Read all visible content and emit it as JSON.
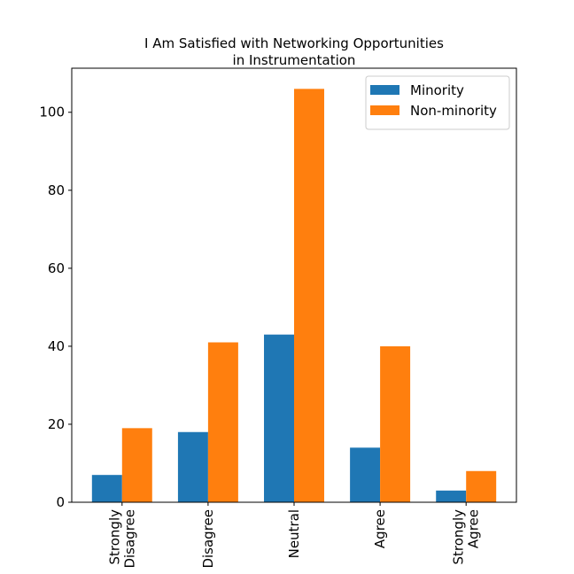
{
  "chart_data": {
    "type": "bar",
    "title": [
      "I Am Satisfied with Networking Opportunities",
      "in Instrumentation"
    ],
    "categories": [
      "Strongly\nDisagree",
      "Disagree",
      "Neutral",
      "Agree",
      "Strongly\nAgree"
    ],
    "series": [
      {
        "name": "Minority",
        "color": "#1f77b4",
        "values": [
          7,
          18,
          43,
          14,
          3
        ]
      },
      {
        "name": "Non-minority",
        "color": "#ff7f0e",
        "values": [
          19,
          41,
          106,
          40,
          8
        ]
      }
    ],
    "ylim": [
      0,
      111.3
    ],
    "yticks": [
      0,
      20,
      40,
      60,
      80,
      100
    ],
    "legend": "upper right"
  }
}
